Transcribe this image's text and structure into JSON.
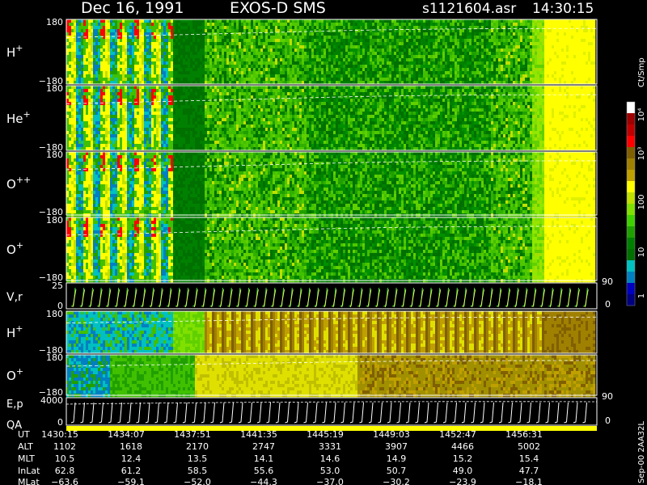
{
  "header": {
    "date": "Dec 16, 1991",
    "instrument": "EXOS-D SMS",
    "file": "s1121604.asr",
    "time": "14:30:15"
  },
  "colorbar": {
    "unit": "Ct/Smp",
    "tick_labels": [
      "10⁴",
      "10³",
      "100",
      "10",
      "1"
    ],
    "colors": [
      "#ffffff",
      "#a00000",
      "#c00000",
      "#ff0000",
      "#806000",
      "#a08000",
      "#c0a000",
      "#ffff00",
      "#c0e000",
      "#80e000",
      "#40d000",
      "#20a000",
      "#008000",
      "#007000",
      "#00c0c0",
      "#0080c0",
      "#0000c0",
      "#000080"
    ]
  },
  "chart_data": {
    "type": "heatmap",
    "panels": [
      {
        "label": "H",
        "superscript": "+",
        "y_top": "180",
        "y_bottom": "−180"
      },
      {
        "label": "He",
        "superscript": "+",
        "y_top": "180",
        "y_bottom": "−180"
      },
      {
        "label": "O",
        "superscript": "++",
        "y_top": "180",
        "y_bottom": "−180"
      },
      {
        "label": "O",
        "superscript": "+",
        "y_top": "180",
        "y_bottom": "−180"
      },
      {
        "label": "V,r",
        "superscript": "",
        "y_top": "25",
        "y_bottom": "0",
        "right_top": "90",
        "right_bottom": "0"
      },
      {
        "label": "H",
        "superscript": "+",
        "y_top": "180",
        "y_bottom": "−180"
      },
      {
        "label": "O",
        "superscript": "+",
        "y_top": "180",
        "y_bottom": "−180"
      },
      {
        "label": "E,p",
        "label2": "QA",
        "superscript": "",
        "y_top": "4000",
        "y_bottom": "0",
        "right_top": "90",
        "right_bottom": "0"
      }
    ],
    "orbit_table": {
      "row_labels": [
        "UT",
        "ALT",
        "MLT",
        "InLat",
        "MLat"
      ],
      "columns": [
        [
          "1430:15",
          "1102",
          "10.5",
          "62.8",
          "−63.6"
        ],
        [
          "1434:07",
          "1618",
          "12.4",
          "61.2",
          "−59.1"
        ],
        [
          "1437:51",
          "2170",
          "13.5",
          "58.5",
          "−52.0"
        ],
        [
          "1441:35",
          "2747",
          "14.1",
          "55.6",
          "−44.3"
        ],
        [
          "1445:19",
          "3331",
          "14.6",
          "53.0",
          "−37.0"
        ],
        [
          "1449:03",
          "3907",
          "14.9",
          "50.7",
          "−30.2"
        ],
        [
          "1452:47",
          "4466",
          "15.2",
          "49.0",
          "−23.9"
        ],
        [
          "1456:31",
          "5002",
          "15.4",
          "47.7",
          "−18.1"
        ]
      ]
    }
  },
  "side_stamp": "Sep-00 2AA32L"
}
